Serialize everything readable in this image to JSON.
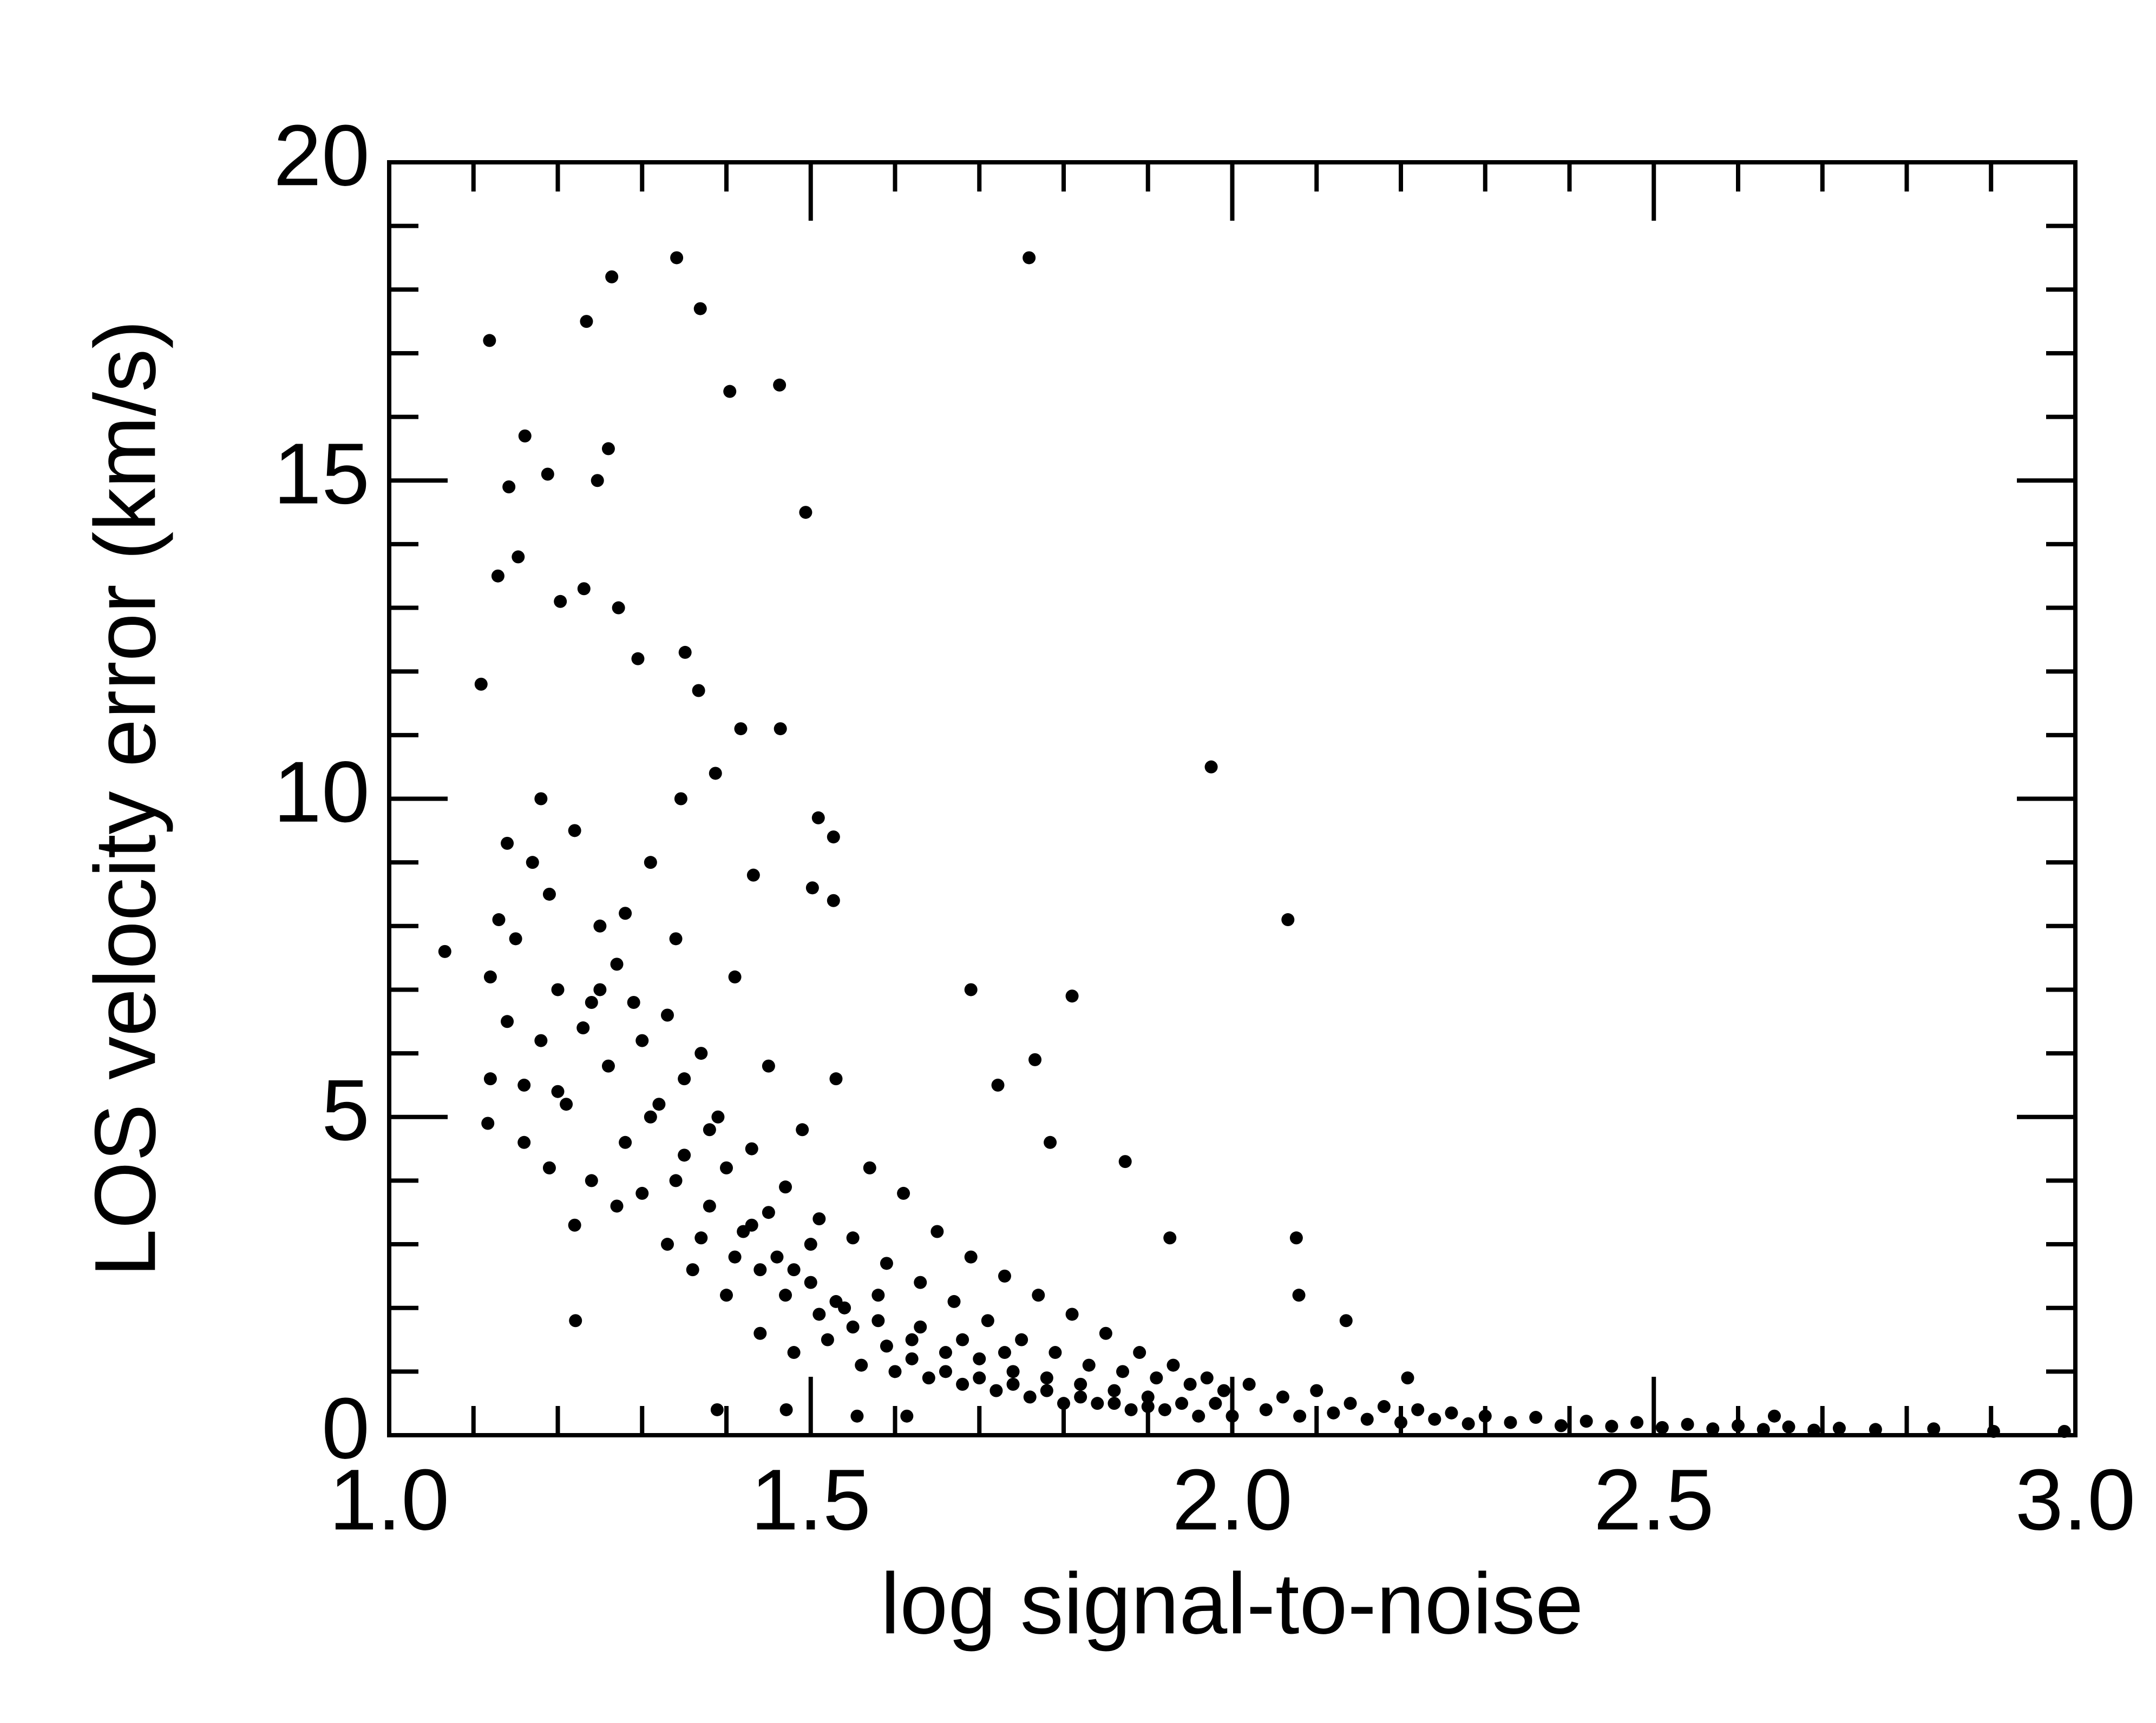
{
  "chart_data": {
    "type": "scatter",
    "x_label": "log signal-to-noise",
    "y_label": "LOS velocity error (km/s)",
    "color": "#000000",
    "xlim": [
      1,
      3
    ],
    "ylim": [
      0,
      20
    ],
    "xticks": [
      {
        "value": 1,
        "label": "1.0"
      },
      {
        "value": 1.5,
        "label": "1.5"
      },
      {
        "value": 2,
        "label": "2.0"
      },
      {
        "value": 2.5,
        "label": "2.5"
      },
      {
        "value": 3,
        "label": "3.0"
      }
    ],
    "yticks": [
      0,
      5,
      10,
      15,
      20
    ],
    "xminorticks": [
      1.1,
      1.2,
      1.3,
      1.4,
      1.6,
      1.7,
      1.8,
      1.9,
      2.1,
      2.2,
      2.3,
      2.4,
      2.6,
      2.7,
      2.8,
      2.9
    ],
    "yminorticks": [
      1,
      2,
      3,
      4,
      6,
      7,
      8,
      9,
      11,
      12,
      13,
      14,
      16,
      17,
      18,
      19
    ],
    "x": [
      1.12,
      1.13,
      1.14,
      1.15,
      1.16,
      1.17,
      1.18,
      1.19,
      1.12,
      1.14,
      1.16,
      1.18,
      1.2,
      1.21,
      1.22,
      1.23,
      1.24,
      1.25,
      1.22,
      1.19,
      1.26,
      1.27,
      1.28,
      1.29,
      1.3,
      1.31,
      1.32,
      1.33,
      1.34,
      1.35,
      1.36,
      1.37,
      1.38,
      1.39,
      1.4,
      1.41,
      1.42,
      1.43,
      1.44,
      1.45,
      1.46,
      1.47,
      1.48,
      1.49,
      1.5,
      1.51,
      1.52,
      1.53,
      1.54,
      1.55,
      1.56,
      1.57,
      1.58,
      1.59,
      1.6,
      1.61,
      1.62,
      1.63,
      1.64,
      1.65,
      1.66,
      1.67,
      1.68,
      1.69,
      1.7,
      1.71,
      1.72,
      1.73,
      1.74,
      1.75,
      1.76,
      1.77,
      1.78,
      1.79,
      1.8,
      1.81,
      1.82,
      1.83,
      1.84,
      1.85,
      1.86,
      1.87,
      1.88,
      1.89,
      1.9,
      1.91,
      1.92,
      1.93,
      1.94,
      1.95,
      1.96,
      1.97,
      1.98,
      1.99,
      2.0,
      2.02,
      2.04,
      2.06,
      2.08,
      2.1,
      2.12,
      2.14,
      2.16,
      2.18,
      2.2,
      2.22,
      2.24,
      2.26,
      2.28,
      2.3,
      2.33,
      2.36,
      2.39,
      2.42,
      2.45,
      2.48,
      2.51,
      2.54,
      2.57,
      2.6,
      2.63,
      2.66,
      2.69,
      2.72,
      1.3,
      1.25,
      1.35,
      1.4,
      1.45,
      1.5,
      1.28,
      1.33,
      1.38,
      1.43,
      1.48,
      1.53,
      1.58,
      1.63,
      1.68,
      1.73,
      1.2,
      1.24,
      1.27,
      1.31,
      1.34,
      1.37,
      1.41,
      1.44,
      1.47,
      1.51,
      1.55,
      1.59,
      1.62,
      1.66,
      1.7,
      1.74,
      1.78,
      1.82,
      1.86,
      1.9,
      1.119,
      1.264,
      1.341,
      1.759,
      1.234,
      1.369,
      1.404,
      1.463,
      1.494,
      1.975,
      2.066,
      1.066,
      1.161,
      1.142,
      1.188,
      1.247,
      1.26,
      1.129,
      1.153,
      1.109,
      1.231,
      1.272,
      1.203,
      1.295,
      1.351,
      1.367,
      1.417,
      1.464,
      1.346,
      1.387,
      1.509,
      1.527,
      1.502,
      1.527,
      1.432,
      1.69,
      1.81,
      1.766,
      1.722,
      1.784,
      1.873,
      1.926,
      2.076,
      2.079,
      2.135,
      1.117,
      1.221,
      1.389,
      1.471,
      1.555,
      1.614,
      2.987,
      2.903,
      2.832,
      2.763,
      2.208,
      2.643
    ],
    "values": [
      7.2,
      8.1,
      6.5,
      7.8,
      5.5,
      9.0,
      6.2,
      8.5,
      5.6,
      9.3,
      4.6,
      10.0,
      7.0,
      5.2,
      9.5,
      6.4,
      4.0,
      8.0,
      3.3,
      4.2,
      5.8,
      7.4,
      4.6,
      6.8,
      3.8,
      9.0,
      5.2,
      3.0,
      7.8,
      4.4,
      2.6,
      6.0,
      3.6,
      5.0,
      2.2,
      7.2,
      3.2,
      4.5,
      1.6,
      5.8,
      2.8,
      3.9,
      1.3,
      4.8,
      2.4,
      3.4,
      1.5,
      5.6,
      2.0,
      3.1,
      1.1,
      4.2,
      1.8,
      2.7,
      1.0,
      3.8,
      1.5,
      2.4,
      0.9,
      3.2,
      1.3,
      2.1,
      0.8,
      2.8,
      1.2,
      1.8,
      0.7,
      2.5,
      1.0,
      1.5,
      0.6,
      2.2,
      0.9,
      1.3,
      0.5,
      1.9,
      0.8,
      1.1,
      0.5,
      1.6,
      0.7,
      1.0,
      0.4,
      1.3,
      0.6,
      0.9,
      0.4,
      1.1,
      0.5,
      0.8,
      0.3,
      0.9,
      0.5,
      0.7,
      0.3,
      0.8,
      0.4,
      0.6,
      0.3,
      0.7,
      0.35,
      0.5,
      0.25,
      0.45,
      0.2,
      0.4,
      0.25,
      0.35,
      0.18,
      0.3,
      0.2,
      0.28,
      0.15,
      0.22,
      0.14,
      0.2,
      0.12,
      0.17,
      0.1,
      0.15,
      0.09,
      0.13,
      0.08,
      0.11,
      6.2,
      7.0,
      5.6,
      4.2,
      3.5,
      3.0,
      8.2,
      6.6,
      4.8,
      3.3,
      2.6,
      2.1,
      2.2,
      1.7,
      1.5,
      1.3,
      5.4,
      6.8,
      3.6,
      5.0,
      4.0,
      3.1,
      2.8,
      2.6,
      2.2,
      1.9,
      1.7,
      1.4,
      1.2,
      1.0,
      0.9,
      0.8,
      0.7,
      0.6,
      0.5,
      0.45,
      17.2,
      18.2,
      18.5,
      18.5,
      17.5,
      17.7,
      16.4,
      16.5,
      14.5,
      10.5,
      8.1,
      7.6,
      15.7,
      14.9,
      15.1,
      15.0,
      15.5,
      13.5,
      13.8,
      11.8,
      13.3,
      13.0,
      13.1,
      12.2,
      12.3,
      11.7,
      11.1,
      11.1,
      10.0,
      10.4,
      9.7,
      9.4,
      8.6,
      8.4,
      8.8,
      7.0,
      6.9,
      5.9,
      5.5,
      4.6,
      4.3,
      3.1,
      3.1,
      2.2,
      1.8,
      4.9,
      1.8,
      0.4,
      0.4,
      0.3,
      0.3,
      0.06,
      0.06,
      0.1,
      0.09,
      0.9,
      0.3
    ]
  }
}
